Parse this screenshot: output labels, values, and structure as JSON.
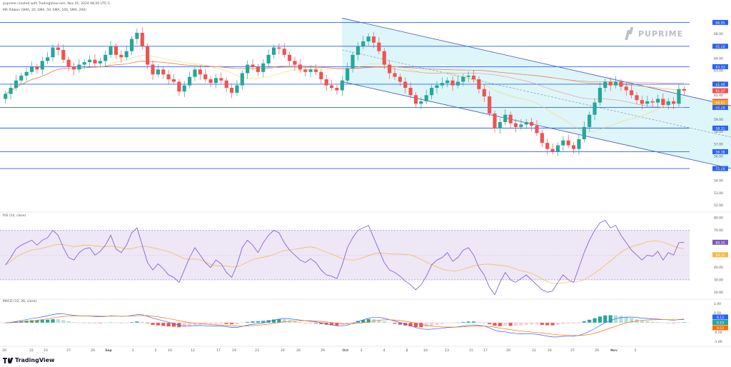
{
  "header": {
    "publisher_line": "puprime created with TradingView.com, Nov 01, 2024 08:20 UTC-5",
    "indicator_line": "MA Ribbon (SMA, 20, SMA, 50, SMA, 100, SMA, 200)"
  },
  "brand": {
    "logo_text": "PUPRIME",
    "footer_text": "TradingView"
  },
  "colors": {
    "up": "#26a69a",
    "down": "#ef5350",
    "hline": "#2962ff",
    "channel_fill": "#d6f3f8",
    "channel_line": "#3f51b5",
    "rsi_line": "#7e57c2",
    "rsi_ma": "#f5b942",
    "rsi_band": "#ede7f6",
    "macd_line": "#2962ff",
    "signal_line": "#ff6d00",
    "ma20": "#f5d742",
    "ma50": "#f28b82",
    "ma100": "#ff9800",
    "ma200": "#e57373"
  },
  "chart_data": [
    {
      "type": "candlestick",
      "y_ticks": [
        "66.00",
        "65.00",
        "64.00",
        "63.00",
        "62.00",
        "61.00",
        "60.00",
        "59.00",
        "58.00",
        "57.00",
        "56.00",
        "55.00",
        "54.00",
        "53.00",
        "52.00"
      ],
      "ylim": [
        51.5,
        67.5
      ],
      "x_ticks": [
        "20",
        "22",
        "23",
        "27",
        "29",
        "Sep",
        "3",
        "5",
        "10",
        "12",
        "17",
        "19",
        "23",
        "24",
        "26",
        "29",
        "Oct",
        "3",
        "4",
        "8",
        "10",
        "13",
        "15",
        "17",
        "20",
        "22",
        "24",
        "27",
        "29",
        "Nov",
        "5"
      ],
      "horizontal_levels": [
        66.95,
        65.0,
        63.33,
        61.9,
        60.0,
        58.31,
        56.38,
        55.0
      ],
      "level_labels": [
        "66.95",
        "65.00",
        "63.33",
        "61.90",
        "60.00",
        "58.31",
        "56.38",
        "55.00"
      ],
      "price_badges": [
        {
          "text": "61.37",
          "value": 61.37,
          "color": "#ef5350"
        },
        {
          "text": "60.50",
          "value": 60.5,
          "color": "#ef5350"
        },
        {
          "text": "60.41",
          "value": 60.41,
          "color": "#f5a623"
        }
      ],
      "closes": [
        61.1,
        61.6,
        62.2,
        62.6,
        62.9,
        63.3,
        63.1,
        63.8,
        64.1,
        64.9,
        64.7,
        63.9,
        63.3,
        63.1,
        63.5,
        63.7,
        63.9,
        63.6,
        63.8,
        64.3,
        65.0,
        64.3,
        64.1,
        64.6,
        65.6,
        66.1,
        65.0,
        63.5,
        62.7,
        63.1,
        62.7,
        62.3,
        62.1,
        61.3,
        61.8,
        62.5,
        63.1,
        62.7,
        62.3,
        62.0,
        62.4,
        62.2,
        61.6,
        61.2,
        61.8,
        62.8,
        63.5,
        63.3,
        62.9,
        63.6,
        64.3,
        64.9,
        64.8,
        64.3,
        63.8,
        63.5,
        63.1,
        62.9,
        63.1,
        62.9,
        62.3,
        61.8,
        61.6,
        61.4,
        62.2,
        63.2,
        64.3,
        65.0,
        65.4,
        65.8,
        65.3,
        64.6,
        63.5,
        62.8,
        62.5,
        62.1,
        61.6,
        61.0,
        60.3,
        60.5,
        61.0,
        61.6,
        61.8,
        62.0,
        62.2,
        61.8,
        62.1,
        62.5,
        62.6,
        62.3,
        61.5,
        60.9,
        59.5,
        58.3,
        58.8,
        59.4,
        58.7,
        58.4,
        58.6,
        58.8,
        58.5,
        57.9,
        57.1,
        56.6,
        56.4,
        56.9,
        57.3,
        56.9,
        56.6,
        57.4,
        58.4,
        59.4,
        60.4,
        61.6,
        62.1,
        61.8,
        62.1,
        61.7,
        61.4,
        61.0,
        60.6,
        60.3,
        60.5,
        60.4,
        60.7,
        60.2,
        60.5,
        60.3,
        61.5,
        61.37
      ],
      "channel": {
        "upper_from": [
          64,
          67.3
        ],
        "upper_to": [
          163,
          57.7
        ],
        "lower_from": [
          64,
          62.1
        ],
        "lower_to": [
          163,
          52.6
        ]
      }
    },
    {
      "type": "line",
      "name": "RSI (14, close)",
      "y_ticks": [
        "80.00",
        "70.00",
        "60.00",
        "50.00",
        "40.00",
        "30.00",
        "20.00"
      ],
      "ylim": [
        15,
        83
      ],
      "band": [
        30,
        70
      ],
      "badges": [
        {
          "text": "60.35",
          "value": 60.35,
          "color": "#7e57c2"
        },
        {
          "text": "50.25",
          "value": 50.25,
          "color": "#f5b942"
        }
      ],
      "values": [
        42,
        48,
        55,
        58,
        60,
        62,
        58,
        62,
        64,
        70,
        66,
        56,
        48,
        46,
        52,
        55,
        56,
        50,
        53,
        58,
        66,
        55,
        52,
        58,
        68,
        72,
        58,
        44,
        38,
        43,
        39,
        34,
        32,
        28,
        38,
        48,
        56,
        50,
        44,
        40,
        46,
        43,
        36,
        32,
        42,
        56,
        62,
        58,
        52,
        60,
        66,
        70,
        68,
        60,
        54,
        50,
        46,
        44,
        47,
        44,
        38,
        34,
        33,
        31,
        42,
        56,
        64,
        70,
        72,
        74,
        64,
        54,
        44,
        38,
        36,
        33,
        29,
        26,
        22,
        26,
        33,
        42,
        46,
        48,
        52,
        45,
        48,
        54,
        56,
        50,
        40,
        34,
        24,
        18,
        28,
        36,
        30,
        28,
        31,
        34,
        30,
        26,
        22,
        20,
        21,
        28,
        34,
        30,
        28,
        40,
        52,
        62,
        70,
        76,
        78,
        72,
        74,
        66,
        60,
        54,
        50,
        46,
        50,
        49,
        53,
        46,
        52,
        50,
        60,
        60.35
      ],
      "ma_badge_value": 50.25
    },
    {
      "type": "bar",
      "name": "MACD (12, 26, close)",
      "y_ticks": [
        "1.00",
        "0.50",
        "0.00",
        "-0.50",
        "-1.00"
      ],
      "ylim": [
        -1.2,
        1.2
      ],
      "badges": [
        {
          "text": "0.13",
          "value": 0.13,
          "color": "#2962ff"
        },
        {
          "text": "0.10",
          "value": 0.1,
          "color": "#26a69a"
        },
        {
          "text": "0.03",
          "value": 0.03,
          "color": "#ff6d00"
        }
      ]
    }
  ]
}
